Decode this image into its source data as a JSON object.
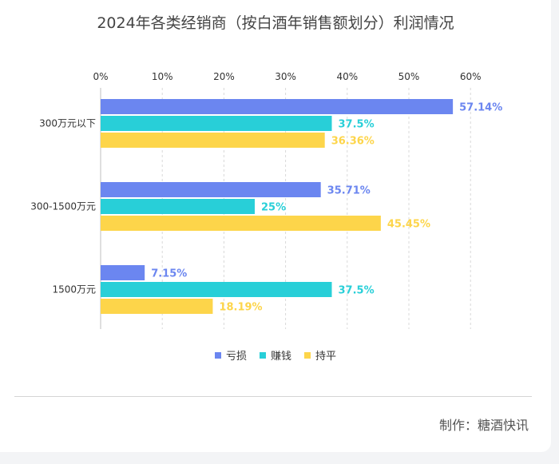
{
  "title": "2024年各类经销商（按白酒年销售额划分）利润情况",
  "credit": "制作：糖酒快讯",
  "chart_data": {
    "type": "bar",
    "orientation": "horizontal",
    "title": "2024年各类经销商（按白酒年销售额划分）利润情况",
    "categories": [
      "300万元以下",
      "300-1500万元",
      "1500万元"
    ],
    "series": [
      {
        "name": "亏损",
        "color": "#6b86f0",
        "values": [
          57.14,
          35.71,
          7.15
        ],
        "labels": [
          "57.14%",
          "35.71%",
          "7.15%"
        ]
      },
      {
        "name": "赚钱",
        "color": "#28cfd8",
        "values": [
          37.5,
          25,
          37.5
        ],
        "labels": [
          "37.5%",
          "25%",
          "37.5%"
        ]
      },
      {
        "name": "持平",
        "color": "#fdd54a",
        "values": [
          36.36,
          45.45,
          18.19
        ],
        "labels": [
          "36.36%",
          "45.45%",
          "18.19%"
        ]
      }
    ],
    "xlim": [
      0,
      60
    ],
    "ticks": [
      0,
      10,
      20,
      30,
      40,
      50,
      60
    ],
    "tick_labels": [
      "0%",
      "10%",
      "20%",
      "30%",
      "40%",
      "50%",
      "60%"
    ],
    "xlabel": "",
    "ylabel": "",
    "axis_position": "top",
    "grid": true,
    "legend": "bottom-center"
  }
}
